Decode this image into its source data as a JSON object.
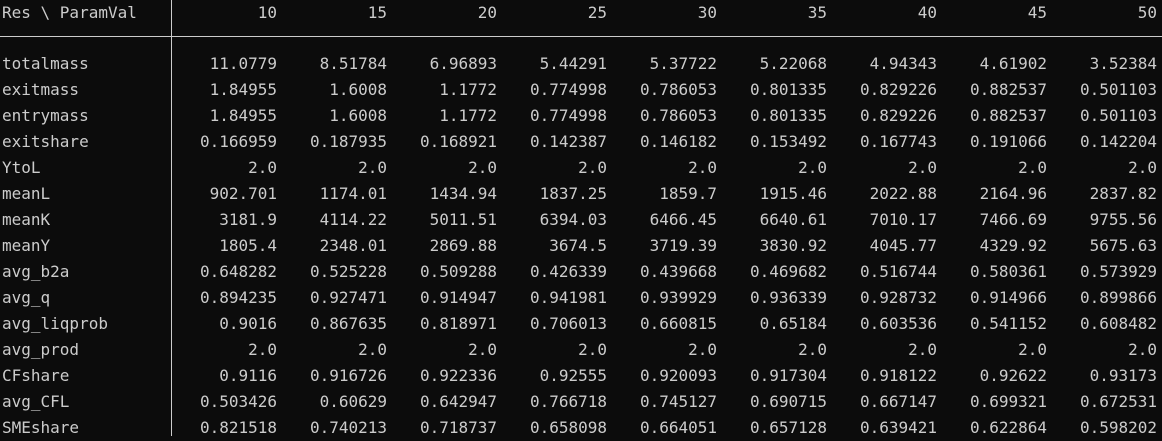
{
  "table": {
    "corner_label": "Res \\ ParamVal",
    "columns": [
      "10",
      "15",
      "20",
      "25",
      "30",
      "35",
      "40",
      "45",
      "50"
    ],
    "rows": [
      {
        "label": "totalmass",
        "values": [
          "11.0779",
          "8.51784",
          "6.96893",
          "5.44291",
          "5.37722",
          "5.22068",
          "4.94343",
          "4.61902",
          "3.52384"
        ]
      },
      {
        "label": "exitmass",
        "values": [
          "1.84955",
          "1.6008",
          "1.1772",
          "0.774998",
          "0.786053",
          "0.801335",
          "0.829226",
          "0.882537",
          "0.501103"
        ]
      },
      {
        "label": "entrymass",
        "values": [
          "1.84955",
          "1.6008",
          "1.1772",
          "0.774998",
          "0.786053",
          "0.801335",
          "0.829226",
          "0.882537",
          "0.501103"
        ]
      },
      {
        "label": "exitshare",
        "values": [
          "0.166959",
          "0.187935",
          "0.168921",
          "0.142387",
          "0.146182",
          "0.153492",
          "0.167743",
          "0.191066",
          "0.142204"
        ]
      },
      {
        "label": "YtoL",
        "values": [
          "2.0",
          "2.0",
          "2.0",
          "2.0",
          "2.0",
          "2.0",
          "2.0",
          "2.0",
          "2.0"
        ]
      },
      {
        "label": "meanL",
        "values": [
          "902.701",
          "1174.01",
          "1434.94",
          "1837.25",
          "1859.7",
          "1915.46",
          "2022.88",
          "2164.96",
          "2837.82"
        ]
      },
      {
        "label": "meanK",
        "values": [
          "3181.9",
          "4114.22",
          "5011.51",
          "6394.03",
          "6466.45",
          "6640.61",
          "7010.17",
          "7466.69",
          "9755.56"
        ]
      },
      {
        "label": "meanY",
        "values": [
          "1805.4",
          "2348.01",
          "2869.88",
          "3674.5",
          "3719.39",
          "3830.92",
          "4045.77",
          "4329.92",
          "5675.63"
        ]
      },
      {
        "label": "avg_b2a",
        "values": [
          "0.648282",
          "0.525228",
          "0.509288",
          "0.426339",
          "0.439668",
          "0.469682",
          "0.516744",
          "0.580361",
          "0.573929"
        ]
      },
      {
        "label": "avg_q",
        "values": [
          "0.894235",
          "0.927471",
          "0.914947",
          "0.941981",
          "0.939929",
          "0.936339",
          "0.928732",
          "0.914966",
          "0.899866"
        ]
      },
      {
        "label": "avg_liqprob",
        "values": [
          "0.9016",
          "0.867635",
          "0.818971",
          "0.706013",
          "0.660815",
          "0.65184",
          "0.603536",
          "0.541152",
          "0.608482"
        ]
      },
      {
        "label": "avg_prod",
        "values": [
          "2.0",
          "2.0",
          "2.0",
          "2.0",
          "2.0",
          "2.0",
          "2.0",
          "2.0",
          "2.0"
        ]
      },
      {
        "label": "CFshare",
        "values": [
          "0.9116",
          "0.916726",
          "0.922336",
          "0.92555",
          "0.920093",
          "0.917304",
          "0.918122",
          "0.92622",
          "0.93173"
        ]
      },
      {
        "label": "avg_CFL",
        "values": [
          "0.503426",
          "0.60629",
          "0.642947",
          "0.766718",
          "0.745127",
          "0.690715",
          "0.667147",
          "0.699321",
          "0.672531"
        ]
      },
      {
        "label": "SMEshare",
        "values": [
          "0.821518",
          "0.740213",
          "0.718737",
          "0.658098",
          "0.664051",
          "0.657128",
          "0.639421",
          "0.622864",
          "0.598202"
        ]
      }
    ]
  },
  "colors": {
    "background": "#0c0c0c",
    "text": "#cccccc"
  }
}
